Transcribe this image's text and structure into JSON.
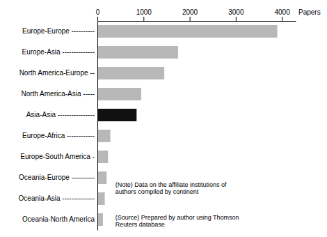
{
  "chart_data": {
    "type": "bar",
    "orientation": "horizontal",
    "categories": [
      "Oceania-North America",
      "Oceania-Asia --------------",
      "Oceania-Europe ----------",
      "Europe-South America -",
      "Europe-Africa ------------",
      "Asia-Asia ----------------",
      "North America-Asia -----",
      "North America-Europe --",
      "Europe-Asia --------------",
      "Europe-Europe ----------"
    ],
    "values": [
      120,
      160,
      200,
      230,
      280,
      850,
      950,
      1450,
      1750,
      3900
    ],
    "colors": [
      "#b8b8b8",
      "#b8b8b8",
      "#b8b8b8",
      "#b8b8b8",
      "#b8b8b8",
      "#111111",
      "#b8b8b8",
      "#b8b8b8",
      "#b8b8b8",
      "#b8b8b8"
    ],
    "xlim": [
      0,
      4300
    ],
    "xticks": [
      0,
      1000,
      2000,
      3000,
      4000
    ],
    "xlabel": "Papers",
    "annotations": [
      "(Note) Data on the affiliate institutions of\nauthors compiled by continent",
      "(Source) Prepared by author using Thomson\nReuters database"
    ],
    "grid": false
  }
}
